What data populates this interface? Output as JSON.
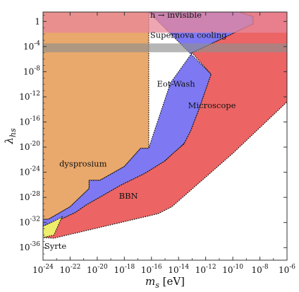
{
  "chart_data": {
    "type": "area",
    "title": "",
    "xlabel_symbol": "m",
    "xlabel_subscript": "s",
    "xlabel_unit": "[eV]",
    "ylabel_symbol": "λ",
    "ylabel_subscript": "hs",
    "x_scale": "log10",
    "y_scale": "log10",
    "xlim_log10": [
      -24,
      -6
    ],
    "ylim_log10": [
      -38,
      1.5
    ],
    "x_ticks": [
      {
        "exp": -24,
        "label": "-24"
      },
      {
        "exp": -22,
        "label": "-22"
      },
      {
        "exp": -20,
        "label": "-20"
      },
      {
        "exp": -18,
        "label": "-18"
      },
      {
        "exp": -16,
        "label": "-16"
      },
      {
        "exp": -14,
        "label": "-14"
      },
      {
        "exp": -12,
        "label": "-12"
      },
      {
        "exp": -10,
        "label": "-10"
      },
      {
        "exp": -8,
        "label": "-8"
      },
      {
        "exp": -6,
        "label": "-6"
      }
    ],
    "y_ticks": [
      {
        "exp": 0,
        "label": "1"
      },
      {
        "exp": -4,
        "label": "-4"
      },
      {
        "exp": -8,
        "label": "-8"
      },
      {
        "exp": -12,
        "label": "-12"
      },
      {
        "exp": -16,
        "label": "-16"
      },
      {
        "exp": -20,
        "label": "-20"
      },
      {
        "exp": -24,
        "label": "-24"
      },
      {
        "exp": -28,
        "label": "-28"
      },
      {
        "exp": -32,
        "label": "-32"
      },
      {
        "exp": -36,
        "label": "-36"
      }
    ],
    "tick_base": "10",
    "grid": false,
    "regions": [
      {
        "name": "dysprosium",
        "color": "#e9a86c",
        "dashed_boundary": true,
        "label_at": [
          -22.8,
          -23.1
        ],
        "points": [
          [
            -24,
            1.5
          ],
          [
            -16.2,
            1.5
          ],
          [
            -16.2,
            -20.2
          ],
          [
            -16.8,
            -20.2
          ],
          [
            -18,
            -23.1
          ],
          [
            -19.8,
            -25.3
          ],
          [
            -20.4,
            -25.3
          ],
          [
            -20.6,
            -25.3
          ],
          [
            -20.6,
            -26.6
          ],
          [
            -22,
            -29.5
          ],
          [
            -23.6,
            -31.5
          ],
          [
            -24,
            -31.5
          ]
        ]
      },
      {
        "name": "Eot-Wash",
        "color": "#7e79f2",
        "dashed_boundary": true,
        "label_at": [
          -15.6,
          -10.4
        ],
        "points": [
          [
            -16.2,
            1.5
          ],
          [
            -9.5,
            1.5
          ],
          [
            -8.5,
            0.8
          ],
          [
            -8.5,
            -0.4
          ],
          [
            -13,
            -5
          ],
          [
            -14.6,
            -9.8
          ],
          [
            -15.9,
            -18.2
          ],
          [
            -16.2,
            -20.2
          ],
          [
            -16.8,
            -20.2
          ],
          [
            -18,
            -23.1
          ],
          [
            -19.8,
            -25.3
          ],
          [
            -20.6,
            -25.3
          ],
          [
            -20.6,
            -26.6
          ],
          [
            -22,
            -29.5
          ],
          [
            -23.6,
            -31.5
          ],
          [
            -24,
            -31.5
          ],
          [
            -24,
            -32.6
          ],
          [
            -23.6,
            -32.2
          ],
          [
            -22.6,
            -31.4
          ],
          [
            -21.6,
            -30.4
          ],
          [
            -20.8,
            -29.2
          ],
          [
            -19.5,
            -27.6
          ],
          [
            -18.3,
            -26.1
          ],
          [
            -16.5,
            -24.2
          ],
          [
            -15,
            -22.2
          ],
          [
            -14,
            -20.3
          ],
          [
            -13.2,
            -18.6
          ],
          [
            -12.2,
            -16.5
          ],
          [
            -11.6,
            -15.6
          ],
          [
            -11.6,
            -8.4
          ]
        ]
      },
      {
        "name": "Microscope",
        "color": "#efa7a5",
        "dashed_boundary": true,
        "label_at": [
          -13.3,
          -13.8
        ],
        "points": [
          [
            -11.6,
            -8.4
          ],
          [
            -11.6,
            -15.6
          ],
          [
            -12.2,
            -16.5
          ],
          [
            -13.2,
            -18.6
          ],
          [
            -14,
            -20.3
          ],
          [
            -15,
            -22.2
          ],
          [
            -14.4,
            -21
          ],
          [
            -13.6,
            -19.5
          ],
          [
            -13.1,
            -17.4
          ],
          [
            -12.5,
            -14
          ]
        ]
      },
      {
        "name": "BBN",
        "color": "#ec6464",
        "dashed_boundary": true,
        "label_at": [
          -18.4,
          -28.2
        ],
        "points": [
          [
            -9.5,
            1.5
          ],
          [
            -6,
            1.5
          ],
          [
            -6,
            -12.8
          ],
          [
            -10,
            -21
          ],
          [
            -14.5,
            -29.5
          ],
          [
            -15.5,
            -30.6
          ],
          [
            -23.2,
            -34.5
          ],
          [
            -24,
            -34.4
          ],
          [
            -24,
            -32.6
          ],
          [
            -23.6,
            -32.2
          ],
          [
            -22.6,
            -31.4
          ],
          [
            -21.6,
            -30.4
          ],
          [
            -20.8,
            -29.2
          ],
          [
            -19.5,
            -27.6
          ],
          [
            -18.3,
            -26.1
          ],
          [
            -16.5,
            -24.2
          ],
          [
            -15,
            -22.2
          ],
          [
            -14.4,
            -21
          ],
          [
            -13.6,
            -19.5
          ],
          [
            -13.1,
            -17.4
          ],
          [
            -12.5,
            -14
          ],
          [
            -11.6,
            -8.4
          ],
          [
            -13,
            -5
          ],
          [
            -8.5,
            -0.4
          ],
          [
            -8.5,
            0.8
          ]
        ]
      },
      {
        "name": "Syrte",
        "color": "#eeee6c",
        "dashed_boundary": true,
        "label_at": [
          -23.9,
          -36.2
        ],
        "points": [
          [
            -24,
            -32.6
          ],
          [
            -23.6,
            -32.2
          ],
          [
            -23,
            -31.6
          ],
          [
            -22.6,
            -31.1
          ],
          [
            -23.2,
            -34
          ],
          [
            -24,
            -34.4
          ]
        ]
      }
    ],
    "bands": [
      {
        "name": "h → invisible",
        "color": "#e8889a",
        "opacity": 0.75,
        "y_log10_range": [
          -1.8,
          1.5
        ],
        "label_at": [
          -16.1,
          0.6
        ]
      },
      {
        "name": "Supernova cooling",
        "color": "#8f8f8f",
        "opacity": 0.65,
        "y_log10_range": [
          -4.9,
          -3.5
        ],
        "label_at": [
          -16.1,
          -2.6
        ]
      }
    ],
    "annotations": [
      {
        "text": "h → invisible"
      },
      {
        "text": "Supernova cooling"
      },
      {
        "text": "Eot-Wash"
      },
      {
        "text": "Microscope"
      },
      {
        "text": "dysprosium"
      },
      {
        "text": "BBN"
      },
      {
        "text": "Syrte"
      }
    ]
  }
}
